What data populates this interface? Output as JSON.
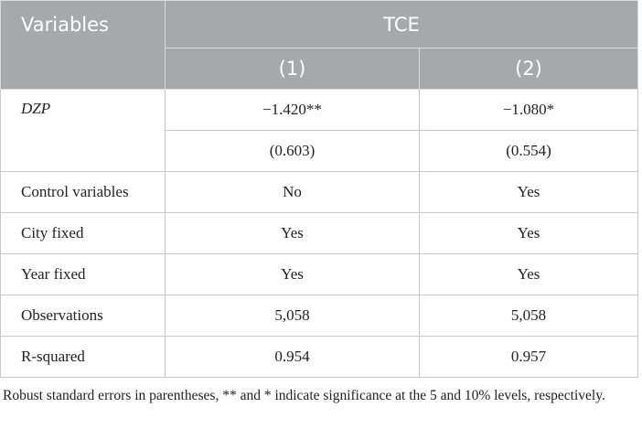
{
  "header": {
    "variables": "Variables",
    "group": "TCE",
    "columns": [
      "(1)",
      "(2)"
    ]
  },
  "rows": [
    {
      "label": "DZP",
      "values": [
        "−1.420**",
        "−1.080*"
      ],
      "errors": [
        "(0.603)",
        "(0.554)"
      ]
    },
    {
      "label": "Control variables",
      "values": [
        "No",
        "Yes"
      ]
    },
    {
      "label": "City fixed",
      "values": [
        "Yes",
        "Yes"
      ]
    },
    {
      "label": "Year fixed",
      "values": [
        "Yes",
        "Yes"
      ]
    },
    {
      "label": "Observations",
      "values": [
        "5,058",
        "5,058"
      ]
    },
    {
      "label": "R-squared",
      "values": [
        "0.954",
        "0.957"
      ]
    }
  ],
  "footnote": "Robust standard errors in parentheses, ** and * indicate significance at the 5 and 10% levels, respectively."
}
